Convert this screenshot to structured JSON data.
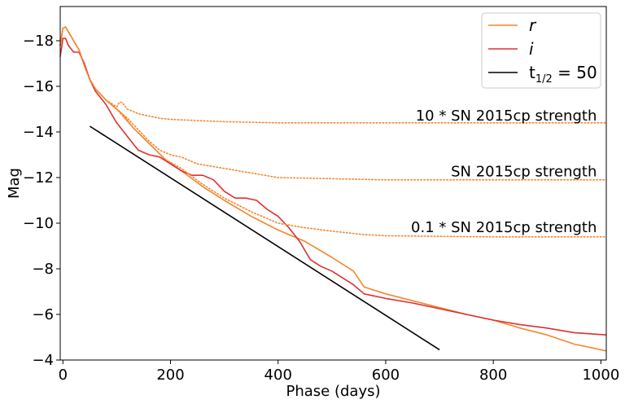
{
  "chart_data": {
    "type": "line",
    "xlabel": "Phase (days)",
    "ylabel": "Mag",
    "xlim": [
      -5,
      1010
    ],
    "ylim": [
      -4,
      -19.5
    ],
    "y_inverted": true,
    "grid": false,
    "legend_position": "top-right",
    "xticks": [
      0,
      200,
      400,
      600,
      800,
      1000
    ],
    "yticks": [
      -4,
      -6,
      -8,
      -10,
      -12,
      -14,
      -16,
      -18
    ],
    "xtick_labels": [
      "0",
      "200",
      "400",
      "600",
      "800",
      "1000"
    ],
    "ytick_labels": [
      "−4",
      "−6",
      "−8",
      "−10",
      "−12",
      "−14",
      "−16",
      "−18"
    ],
    "series": [
      {
        "name": "r",
        "legend_label": "r",
        "color": "#f4862f",
        "style": "solid",
        "x": [
          -5,
          0,
          5,
          15,
          30,
          40,
          50,
          60,
          80,
          100,
          110,
          130,
          160,
          190,
          220,
          260,
          300,
          350,
          400,
          450,
          500,
          540,
          560,
          600,
          650,
          700,
          750,
          800,
          850,
          900,
          950,
          1010
        ],
        "y": [
          -17.8,
          -18.55,
          -18.6,
          -18.2,
          -17.6,
          -16.9,
          -16.3,
          -15.9,
          -15.4,
          -15.0,
          -14.8,
          -14.2,
          -13.5,
          -12.8,
          -12.3,
          -11.6,
          -11.0,
          -10.3,
          -9.7,
          -9.2,
          -8.5,
          -7.9,
          -7.2,
          -6.9,
          -6.6,
          -6.3,
          -6.0,
          -5.75,
          -5.4,
          -5.1,
          -4.7,
          -4.4
        ]
      },
      {
        "name": "i",
        "legend_label": "i",
        "color": "#e03030",
        "style": "solid",
        "x": [
          -5,
          0,
          5,
          10,
          20,
          30,
          40,
          50,
          60,
          80,
          100,
          120,
          140,
          160,
          180,
          200,
          220,
          240,
          260,
          280,
          300,
          320,
          340,
          360,
          380,
          400,
          420,
          440,
          460,
          480,
          500,
          540,
          560,
          600,
          650,
          700,
          750,
          800,
          850,
          900,
          950,
          1010
        ],
        "y": [
          -17.3,
          -18.1,
          -18.1,
          -17.8,
          -17.5,
          -17.5,
          -17.0,
          -16.3,
          -15.8,
          -15.2,
          -14.4,
          -13.8,
          -13.2,
          -13.0,
          -12.9,
          -12.6,
          -12.3,
          -12.1,
          -12.1,
          -11.9,
          -11.4,
          -11.1,
          -11.1,
          -11.0,
          -10.6,
          -10.3,
          -9.8,
          -9.2,
          -8.4,
          -8.1,
          -7.9,
          -7.3,
          -6.9,
          -6.7,
          -6.5,
          -6.25,
          -6.0,
          -5.75,
          -5.55,
          -5.4,
          -5.2,
          -5.1
        ]
      },
      {
        "name": "t1/2 = 50",
        "legend_label_base": "t",
        "legend_label_sub": "1/2",
        "legend_label_rest": " = 50",
        "color": "#000000",
        "style": "solid",
        "x": [
          50,
          700
        ],
        "y": [
          -14.25,
          -4.45
        ]
      },
      {
        "name": "10 * SN 2015cp strength",
        "color": "#f4862f",
        "style": "dotted",
        "x": [
          -5,
          0,
          5,
          15,
          30,
          40,
          50,
          60,
          80,
          100,
          105,
          110,
          120,
          140,
          160,
          180,
          200,
          250,
          300,
          400,
          500,
          600,
          700,
          800,
          900,
          1010
        ],
        "y": [
          -17.8,
          -18.55,
          -18.6,
          -18.2,
          -17.6,
          -16.9,
          -16.3,
          -15.9,
          -15.4,
          -15.1,
          -15.3,
          -15.3,
          -15.0,
          -14.8,
          -14.7,
          -14.6,
          -14.55,
          -14.5,
          -14.45,
          -14.4,
          -14.4,
          -14.4,
          -14.4,
          -14.4,
          -14.4,
          -14.4
        ]
      },
      {
        "name": "SN 2015cp strength",
        "color": "#f4862f",
        "style": "dotted",
        "x": [
          -5,
          0,
          5,
          15,
          30,
          40,
          50,
          60,
          80,
          100,
          120,
          140,
          160,
          180,
          200,
          220,
          250,
          300,
          350,
          400,
          500,
          600,
          700,
          800,
          900,
          1010
        ],
        "y": [
          -17.8,
          -18.55,
          -18.6,
          -18.2,
          -17.6,
          -16.9,
          -16.3,
          -15.9,
          -15.4,
          -15.0,
          -14.6,
          -14.1,
          -13.6,
          -13.2,
          -13.0,
          -12.9,
          -12.6,
          -12.4,
          -12.2,
          -12.0,
          -11.95,
          -11.9,
          -11.9,
          -11.9,
          -11.9,
          -11.9
        ]
      },
      {
        "name": "0.1 * SN 2015cp strength",
        "color": "#f4862f",
        "style": "dotted",
        "x": [
          -5,
          0,
          5,
          15,
          30,
          40,
          50,
          60,
          80,
          100,
          130,
          160,
          190,
          220,
          260,
          300,
          350,
          400,
          450,
          500,
          560,
          600,
          700,
          800,
          900,
          1010
        ],
        "y": [
          -17.8,
          -18.55,
          -18.6,
          -18.2,
          -17.6,
          -16.9,
          -16.3,
          -15.9,
          -15.4,
          -15.0,
          -14.2,
          -13.5,
          -12.8,
          -12.4,
          -11.7,
          -11.1,
          -10.5,
          -10.0,
          -9.8,
          -9.65,
          -9.5,
          -9.45,
          -9.42,
          -9.4,
          -9.4,
          -9.4
        ]
      }
    ],
    "annotations": [
      {
        "text": "10 * SN 2015cp strength",
        "x": 1000,
        "y": -14.5
      },
      {
        "text": "SN 2015cp strength",
        "x": 1000,
        "y": -12.05
      },
      {
        "text": "0.1 * SN 2015cp strength",
        "x": 1000,
        "y": -9.6
      }
    ]
  }
}
